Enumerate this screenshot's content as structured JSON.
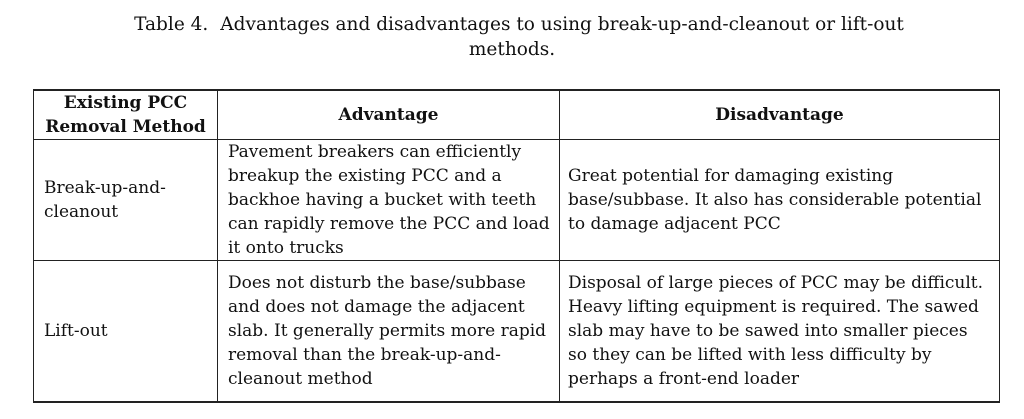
{
  "caption": {
    "label": "Table 4.",
    "title_line1": "Advantages and disadvantages to using break-up-and-cleanout or lift-out",
    "title_line2": "methods."
  },
  "table": {
    "headers": {
      "method_line1": "Existing PCC",
      "method_line2": "Removal Method",
      "advantage": "Advantage",
      "disadvantage": "Disadvantage"
    },
    "rows": [
      {
        "method": "Break-up-and-cleanout",
        "advantage": "Pavement breakers can efficiently breakup the existing PCC and a backhoe having a bucket with teeth can rapidly remove the PCC and load it onto trucks",
        "disadvantage": "Great potential for damaging existing base/subbase. It also has considerable potential to damage adjacent PCC"
      },
      {
        "method": "Lift-out",
        "advantage": "Does not disturb the base/subbase and does not damage the adjacent slab. It generally permits more rapid removal than the break-up-and-cleanout method",
        "disadvantage": "Disposal of large pieces of PCC may be difficult. Heavy lifting equipment is required. The sawed slab may have to be sawed into smaller pieces so they can be lifted with less difficulty by perhaps a front-end loader"
      }
    ]
  }
}
